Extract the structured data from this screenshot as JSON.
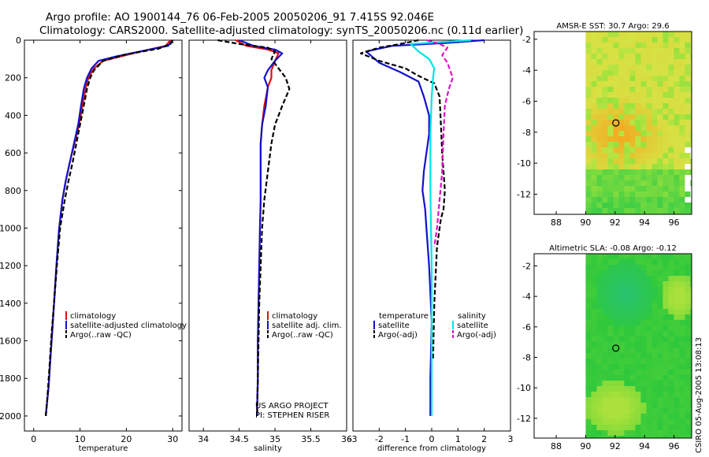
{
  "header": {
    "title_line1": "Argo profile: AO 1900144_76 06-Feb-2005 20050206_91 7.415S 92.046E",
    "title_line2": "Climatology: CARS2000. Satellite-adjusted climatology: synTS_20050206.nc (0.11d earlier)"
  },
  "side_label": "CSIRO 05-Aug-2005 13:08:13",
  "chart_data": [
    {
      "type": "line",
      "id": "temperature",
      "xlabel": "temperature",
      "ylabel": "",
      "xlim": [
        -2,
        32
      ],
      "ylim": [
        0,
        2080
      ],
      "xticks": [
        0,
        10,
        20,
        30
      ],
      "yticks": [
        0,
        200,
        400,
        600,
        800,
        1000,
        1200,
        1400,
        1600,
        1800,
        2000
      ],
      "legend": [
        "climatology",
        "satellite-adjusted climatology",
        "Argo(..raw -QC)"
      ],
      "series": [
        {
          "name": "climatology",
          "color": "#dd1111",
          "dash": "",
          "x": [
            29.5,
            28.5,
            24,
            19,
            15,
            13,
            11.8,
            11.2,
            10.5,
            9.8,
            8.8,
            7.8,
            6.9,
            6.2,
            5.5,
            4.9,
            4.4,
            4.0,
            3.6,
            3.2,
            2.8,
            2.6
          ],
          "y": [
            0,
            30,
            55,
            85,
            110,
            150,
            200,
            260,
            350,
            450,
            550,
            650,
            750,
            850,
            1000,
            1200,
            1400,
            1550,
            1700,
            1850,
            1950,
            2000
          ]
        },
        {
          "name": "satellite-adjusted climatology",
          "color": "#1111cc",
          "dash": "",
          "x": [
            30,
            29,
            24,
            18,
            14,
            12.5,
            11.5,
            10.8,
            10.2,
            9.6,
            8.7,
            7.8,
            6.9,
            6.2,
            5.5,
            4.9,
            4.4,
            4.0,
            3.6,
            3.2,
            2.8,
            2.6
          ],
          "y": [
            0,
            30,
            55,
            85,
            110,
            150,
            200,
            260,
            350,
            450,
            550,
            650,
            750,
            850,
            1000,
            1200,
            1400,
            1550,
            1700,
            1850,
            1950,
            2000
          ]
        },
        {
          "name": "Argo(..raw -QC)",
          "color": "#000000",
          "dash": "6,3",
          "x": [
            30,
            29.5,
            27,
            20,
            15,
            13,
            12.2,
            11.5,
            10.8,
            10,
            9.2,
            8.4,
            7.5,
            6.7,
            5.7,
            5.0,
            4.4,
            3.9,
            3.5,
            3.1,
            2.8,
            2.6
          ],
          "y": [
            0,
            20,
            45,
            75,
            110,
            160,
            200,
            260,
            350,
            450,
            550,
            650,
            750,
            850,
            1000,
            1200,
            1400,
            1550,
            1700,
            1850,
            1950,
            2000
          ]
        }
      ]
    },
    {
      "type": "line",
      "id": "salinity",
      "xlabel": "salinity",
      "ylabel": "",
      "xlim": [
        33.8,
        36.0
      ],
      "ylim": [
        0,
        2080
      ],
      "xticks": [
        34,
        34.5,
        35,
        35.5,
        36
      ],
      "yticks": [],
      "legend": [
        "climatology",
        "satellite adj. clim.",
        "Argo(..raw -QC)"
      ],
      "annotation": [
        "US ARGO PROJECT",
        "PI: STEPHEN RISER"
      ],
      "series": [
        {
          "name": "climatology",
          "color": "#dd1111",
          "dash": "",
          "x": [
            34.45,
            34.6,
            34.9,
            35.05,
            35.0,
            34.95,
            34.95,
            34.9,
            34.85,
            34.82,
            34.8,
            34.8,
            34.8,
            34.79,
            34.78,
            34.77,
            34.76,
            34.76,
            34.75,
            34.75
          ],
          "y": [
            0,
            30,
            50,
            70,
            110,
            160,
            200,
            250,
            350,
            450,
            550,
            700,
            850,
            1000,
            1200,
            1400,
            1600,
            1800,
            1950,
            2000
          ]
        },
        {
          "name": "satellite adj. clim.",
          "color": "#1111cc",
          "dash": "",
          "x": [
            34.5,
            34.7,
            35.0,
            35.1,
            35.0,
            34.9,
            34.85,
            34.9,
            34.87,
            34.82,
            34.8,
            34.8,
            34.8,
            34.79,
            34.78,
            34.77,
            34.76,
            34.76,
            34.75,
            34.75
          ],
          "y": [
            0,
            30,
            50,
            70,
            110,
            160,
            200,
            250,
            350,
            450,
            550,
            700,
            850,
            1000,
            1200,
            1400,
            1600,
            1800,
            1950,
            2000
          ]
        },
        {
          "name": "Argo(..raw -QC)",
          "color": "#000000",
          "dash": "6,3",
          "x": [
            34.2,
            34.5,
            34.9,
            35.0,
            34.95,
            35.05,
            35.15,
            35.2,
            35.1,
            35.0,
            34.95,
            34.9,
            34.85,
            34.82,
            34.8,
            34.78,
            34.77,
            34.76,
            34.75
          ],
          "y": [
            0,
            20,
            40,
            60,
            100,
            150,
            200,
            260,
            350,
            450,
            550,
            700,
            850,
            1000,
            1200,
            1400,
            1600,
            1800,
            2000
          ]
        }
      ]
    },
    {
      "type": "line",
      "id": "difference",
      "xlabel": "difference from climatology",
      "ylabel": "",
      "xlim": [
        -3,
        3
      ],
      "ylim": [
        0,
        2080
      ],
      "xticks": [
        -3,
        -2,
        -1,
        0,
        1,
        2,
        3
      ],
      "yticks": [],
      "legend_left_title": "temperature",
      "legend_right_title": "salinity",
      "legend_left": [
        "satellite",
        "Argo(-adj)"
      ],
      "legend_right": [
        "satellite",
        "Argo(-adj)"
      ],
      "series": [
        {
          "name": "temperature satellite",
          "color": "#1111cc",
          "dash": "",
          "x": [
            2.0,
            0.5,
            -1.5,
            -2.5,
            -2.0,
            -1.2,
            -0.5,
            -0.3,
            -0.1,
            -0.1,
            -0.2,
            -0.3,
            -0.35,
            -0.25,
            -0.2,
            -0.1,
            0.0,
            -0.05,
            -0.05
          ],
          "y": [
            0,
            15,
            30,
            60,
            120,
            170,
            220,
            300,
            400,
            500,
            600,
            700,
            800,
            900,
            1000,
            1200,
            1500,
            1800,
            2000
          ]
        },
        {
          "name": "temperature Argo(-adj)",
          "color": "#000000",
          "dash": "6,3",
          "x": [
            -0.5,
            -1.2,
            -2.0,
            -2.7,
            -2.0,
            -1.0,
            -0.5,
            0.1,
            0.3,
            0.35,
            0.4,
            0.45,
            0.5,
            0.45,
            0.35,
            0.2,
            0.1,
            0.05
          ],
          "y": [
            0,
            20,
            40,
            70,
            110,
            150,
            190,
            230,
            300,
            450,
            600,
            700,
            800,
            900,
            950,
            1100,
            1400,
            1700
          ]
        },
        {
          "name": "salinity satellite",
          "color": "#00e5e5",
          "dash": "",
          "x": [
            1.5,
            -0.8,
            -0.5,
            -0.1,
            0.1,
            0.05,
            0.0,
            -0.05,
            -0.05,
            0.0,
            0.0
          ],
          "y": [
            0,
            20,
            60,
            100,
            150,
            200,
            300,
            500,
            800,
            1200,
            2000
          ]
        },
        {
          "name": "salinity Argo(-adj)",
          "color": "#dd11cc",
          "dash": "6,3",
          "x": [
            -0.2,
            0.3,
            0.6,
            0.4,
            0.6,
            0.8,
            0.65,
            0.5,
            0.45,
            0.4,
            0.3,
            0.2,
            0.1
          ],
          "y": [
            0,
            20,
            40,
            80,
            120,
            200,
            260,
            350,
            500,
            700,
            850,
            1000,
            1100
          ]
        }
      ]
    },
    {
      "type": "heatmap",
      "id": "sst-map",
      "title": "AMSR-E SST: 30.7 Argo: 29.6",
      "xlim": [
        86.5,
        97.2
      ],
      "ylim": [
        -13.3,
        -1.5
      ],
      "xticks": [
        88,
        90,
        92,
        94,
        96
      ],
      "yticks": [
        -2,
        -4,
        -6,
        -8,
        -10,
        -12
      ],
      "marker": {
        "x": 92.05,
        "y": -7.4
      },
      "palette": "yellow-orange-green"
    },
    {
      "type": "heatmap",
      "id": "sla-map",
      "title": "Altimetric SLA: -0.08 Argo: -0.12",
      "xlim": [
        86.5,
        97.2
      ],
      "ylim": [
        -13.3,
        -1.2
      ],
      "xticks": [
        88,
        90,
        92,
        94,
        96
      ],
      "yticks": [
        -2,
        -4,
        -6,
        -8,
        -10,
        -12
      ],
      "marker": {
        "x": 92.05,
        "y": -7.4
      },
      "palette": "green-yellow-cyan"
    }
  ]
}
